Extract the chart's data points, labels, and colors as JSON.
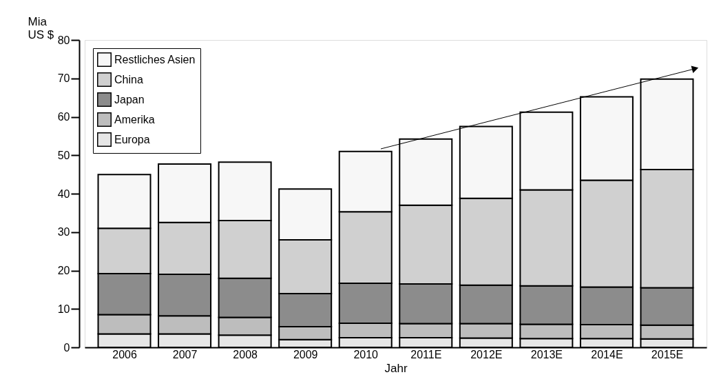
{
  "chart_data": {
    "type": "bar",
    "stacked": true,
    "xlabel": "Jahr",
    "ylabel": "Mia US $",
    "categories": [
      "2006",
      "2007",
      "2008",
      "2009",
      "2010",
      "2011E",
      "2012E",
      "2013E",
      "2014E",
      "2015E"
    ],
    "series": [
      {
        "name": "Europa",
        "color": "#e6e6e6",
        "values": [
          3.5,
          3.5,
          3.2,
          2,
          2.5,
          2.5,
          2.4,
          2.3,
          2.3,
          2.2
        ]
      },
      {
        "name": "Amerika",
        "color": "#bdbdbd",
        "values": [
          5,
          4.7,
          4.6,
          3.4,
          3.8,
          3.7,
          3.8,
          3.7,
          3.6,
          3.6
        ]
      },
      {
        "name": "Japan",
        "color": "#8c8c8c",
        "values": [
          10.7,
          10.8,
          10.2,
          8.6,
          10.4,
          10.3,
          10,
          10,
          9.8,
          9.7
        ]
      },
      {
        "name": "China",
        "color": "#d0d0d0",
        "values": [
          11.8,
          13.5,
          15,
          14,
          18.6,
          20.5,
          22.6,
          25,
          27.8,
          30.8
        ]
      },
      {
        "name": "Restliches Asien",
        "color": "#f7f7f7",
        "values": [
          14,
          15.2,
          15.2,
          13.2,
          15.7,
          17.2,
          18.7,
          20.2,
          21.7,
          23.5
        ]
      }
    ],
    "ylim": [
      0,
      80
    ],
    "yticks": [
      0,
      10,
      20,
      30,
      40,
      50,
      60,
      70,
      80
    ],
    "grid": false,
    "legend": "top left"
  }
}
